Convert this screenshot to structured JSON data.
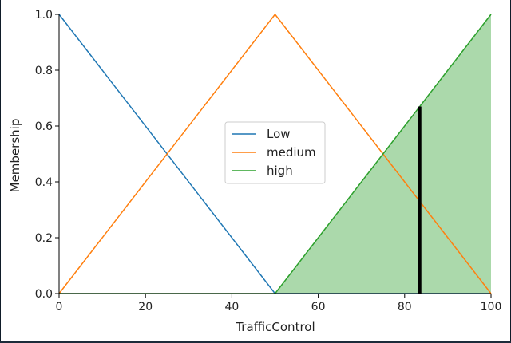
{
  "chart_data": {
    "type": "line",
    "title": "",
    "xlabel": "TrafficControl",
    "ylabel": "Membership",
    "xlim": [
      0,
      100
    ],
    "ylim": [
      0,
      1
    ],
    "xticks": [
      0,
      20,
      40,
      60,
      80,
      100
    ],
    "yticks": [
      0.0,
      0.2,
      0.4,
      0.6,
      0.8,
      1.0
    ],
    "xtick_labels": [
      "0",
      "20",
      "40",
      "60",
      "80",
      "100"
    ],
    "ytick_labels": [
      "0.0",
      "0.2",
      "0.4",
      "0.6",
      "0.8",
      "1.0"
    ],
    "grid": false,
    "legend_position": "center",
    "series": [
      {
        "name": "Low",
        "color": "#1f77b4",
        "x": [
          0,
          50,
          100
        ],
        "y": [
          1,
          0,
          0
        ]
      },
      {
        "name": "medium",
        "color": "#ff7f0e",
        "x": [
          0,
          50,
          100
        ],
        "y": [
          0,
          1,
          0
        ]
      },
      {
        "name": "high",
        "color": "#2ca02c",
        "x": [
          0,
          50,
          100
        ],
        "y": [
          0,
          0,
          1
        ]
      }
    ],
    "filled_area": {
      "series": "high",
      "color": "#2ca02c",
      "opacity": 0.4,
      "x": [
        50,
        100
      ],
      "y": [
        0,
        1
      ]
    },
    "marker_line": {
      "x": 83.5,
      "y": 0.67,
      "color": "#000000"
    }
  }
}
